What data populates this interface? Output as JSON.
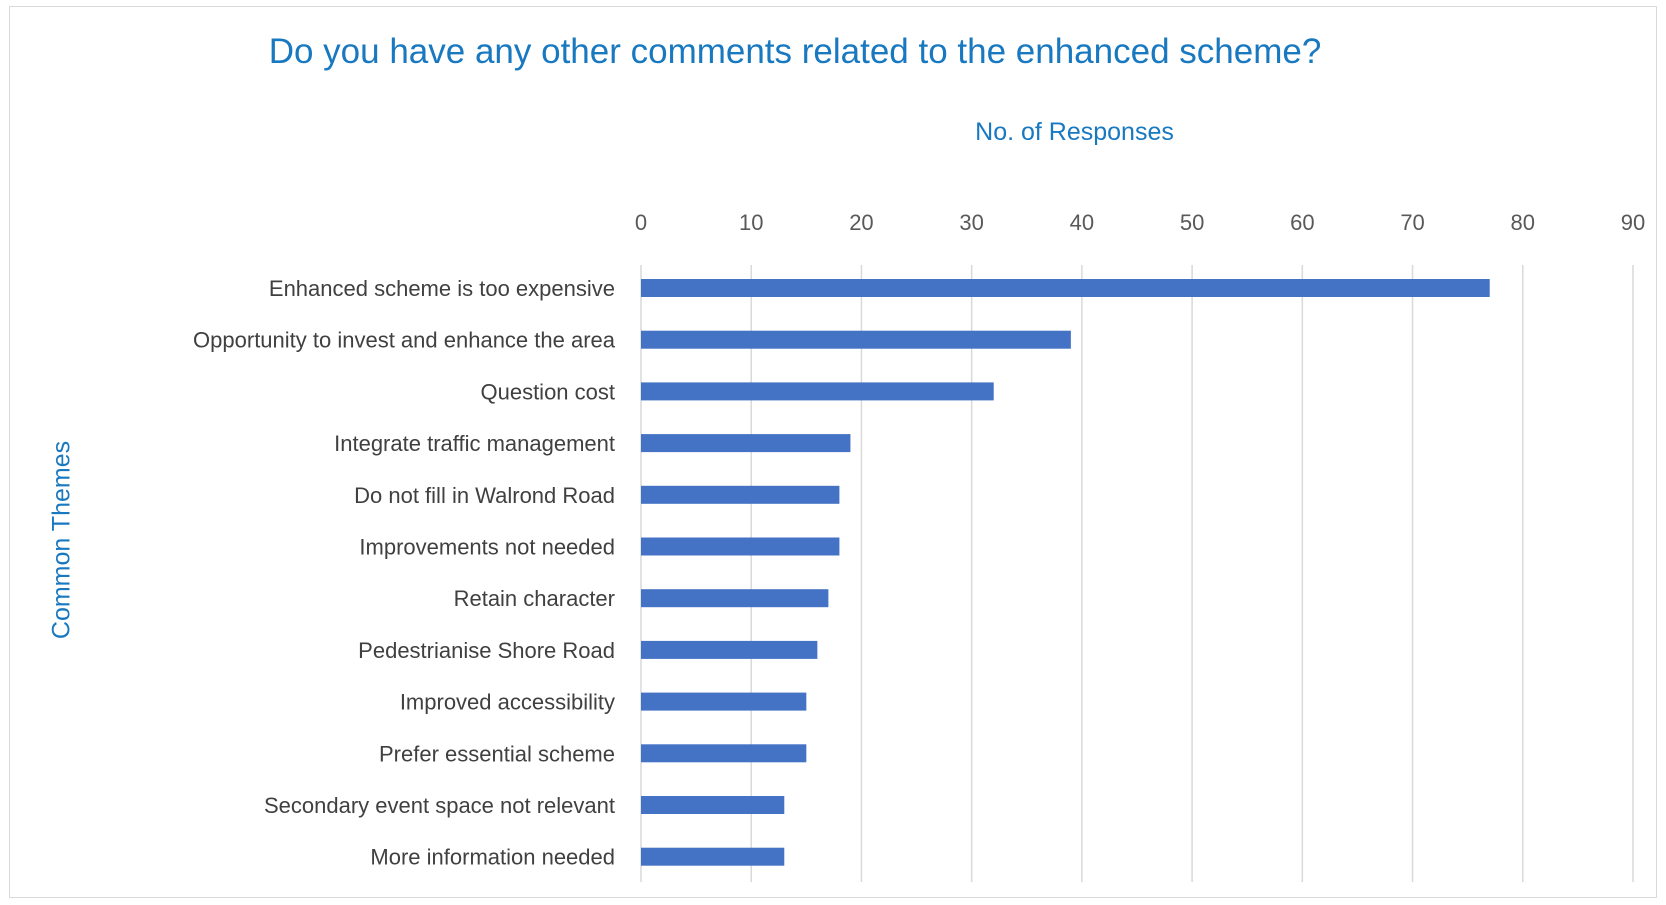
{
  "chart_data": {
    "type": "bar",
    "orientation": "horizontal",
    "title": "Do you have any other comments related to the enhanced scheme?",
    "xlabel": "No. of Responses",
    "ylabel": "Common Themes",
    "xlim": [
      0,
      90
    ],
    "x_ticks": [
      "0",
      "10",
      "20",
      "30",
      "40",
      "50",
      "60",
      "70",
      "80",
      "90"
    ],
    "x_axis_position": "top",
    "grid": true,
    "legend": "none",
    "bar_color": "#4472c4",
    "categories": [
      "Enhanced scheme is too expensive",
      "Opportunity to invest and enhance the area",
      "Question cost",
      "Integrate traffic management",
      "Do not fill in Walrond Road",
      "Improvements not needed",
      "Retain character",
      "Pedestrianise Shore Road",
      "Improved accessibility",
      "Prefer essential scheme",
      "Secondary event space not relevant",
      "More information needed"
    ],
    "values": [
      77,
      39,
      32,
      19,
      18,
      18,
      17,
      16,
      15,
      15,
      13,
      13
    ]
  }
}
